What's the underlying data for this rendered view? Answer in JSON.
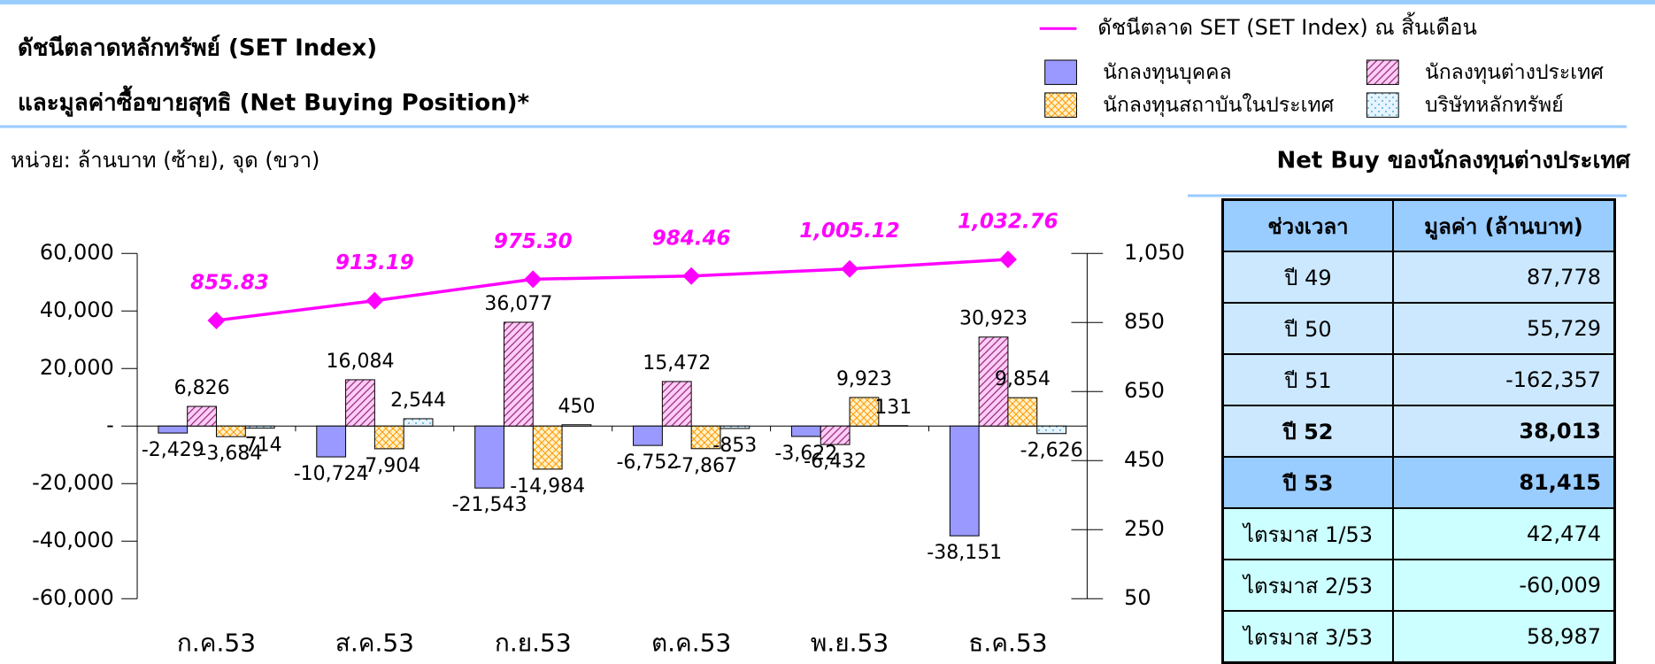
{
  "chart_data": {
    "type": "bar",
    "title": "ดัชนีตลาดหลักทรัพย์ (SET Index)",
    "subtitle": "และมูลค่าซื้อขายสุทธิ (Net Buying Position)*",
    "unit_label": "หน่วย: ล้านบาท (ซ้าย), จุด (ขวา)",
    "categories": [
      "ก.ค.53",
      "ส.ค.53",
      "ก.ย.53",
      "ต.ค.53",
      "พ.ย.53",
      "ธ.ค.53"
    ],
    "series": [
      {
        "name": "นักลงทุนบุคคล",
        "color": "#9999ff",
        "pattern": "solid",
        "values": [
          -2429,
          -10724,
          -21543,
          -6752,
          -3622,
          -38151
        ],
        "value_labels": [
          "-2,429",
          "-10,724",
          "-21,543",
          "-6,752",
          "-3,622",
          "-38,151"
        ]
      },
      {
        "name": "นักลงทุนต่างประเทศ",
        "color": "#993366",
        "pattern": "hatch",
        "values": [
          6826,
          16084,
          36077,
          15472,
          -6432,
          30923
        ],
        "value_labels": [
          "6,826",
          "16,084",
          "36,077",
          "15,472",
          "-6,432",
          "30,923"
        ]
      },
      {
        "name": "นักลงทุนสถาบันในประเทศ",
        "color": "#ff9900",
        "pattern": "crosshatch",
        "values": [
          -3684,
          -7904,
          -14984,
          -7867,
          9923,
          9854
        ],
        "value_labels": [
          "-3,684",
          "-7,904",
          "-14,984",
          "-7,867",
          "9,923",
          "9,854"
        ]
      },
      {
        "name": "บริษัทหลักทรัพย์",
        "color": "#3399cc",
        "pattern": "dots",
        "values": [
          -714,
          2544,
          450,
          -853,
          131,
          -2626
        ],
        "value_labels": [
          "-714",
          "2,544",
          "450",
          "-853",
          "131",
          "-2,626"
        ]
      },
      {
        "name": "ดัชนีตลาด SET (SET Index) ณ สิ้นเดือน",
        "color": "#ff00ff",
        "type": "line",
        "axis": "y2",
        "values": [
          855.83,
          913.19,
          975.3,
          984.46,
          1005.12,
          1032.76
        ],
        "value_labels": [
          "855.83",
          "913.19",
          "975.30",
          "984.46",
          "1,005.12",
          "1,032.76"
        ]
      }
    ],
    "ylim": [
      -60000,
      60000
    ],
    "yticks": [
      {
        "value": -60000,
        "label": "-60,000"
      },
      {
        "value": -40000,
        "label": "-40,000"
      },
      {
        "value": -20000,
        "label": "-20,000"
      },
      {
        "value": 0,
        "label": "-"
      },
      {
        "value": 20000,
        "label": "20,000"
      },
      {
        "value": 40000,
        "label": "40,000"
      },
      {
        "value": 60000,
        "label": "60,000"
      }
    ],
    "y2lim": [
      50,
      1050
    ],
    "y2ticks": [
      50,
      250,
      450,
      650,
      850,
      {
        "value": 1050,
        "label": "1,050"
      }
    ]
  },
  "table": {
    "title": "Net Buy ของนักลงทุนต่างประเทศ",
    "header": [
      "ช่วงเวลา",
      "มูลค่า (ล้านบาท)"
    ],
    "rows": [
      [
        "ปี 49",
        "87,778"
      ],
      [
        "ปี 50",
        "55,729"
      ],
      [
        "ปี 51",
        "-162,357"
      ],
      [
        "ปี 52",
        "38,013"
      ],
      [
        "ปี 53",
        "81,415"
      ],
      [
        "ไตรมาส 1/53",
        "42,474"
      ],
      [
        "ไตรมาส 2/53",
        "-60,009"
      ],
      [
        "ไตรมาส 3/53",
        "58,987"
      ]
    ]
  }
}
